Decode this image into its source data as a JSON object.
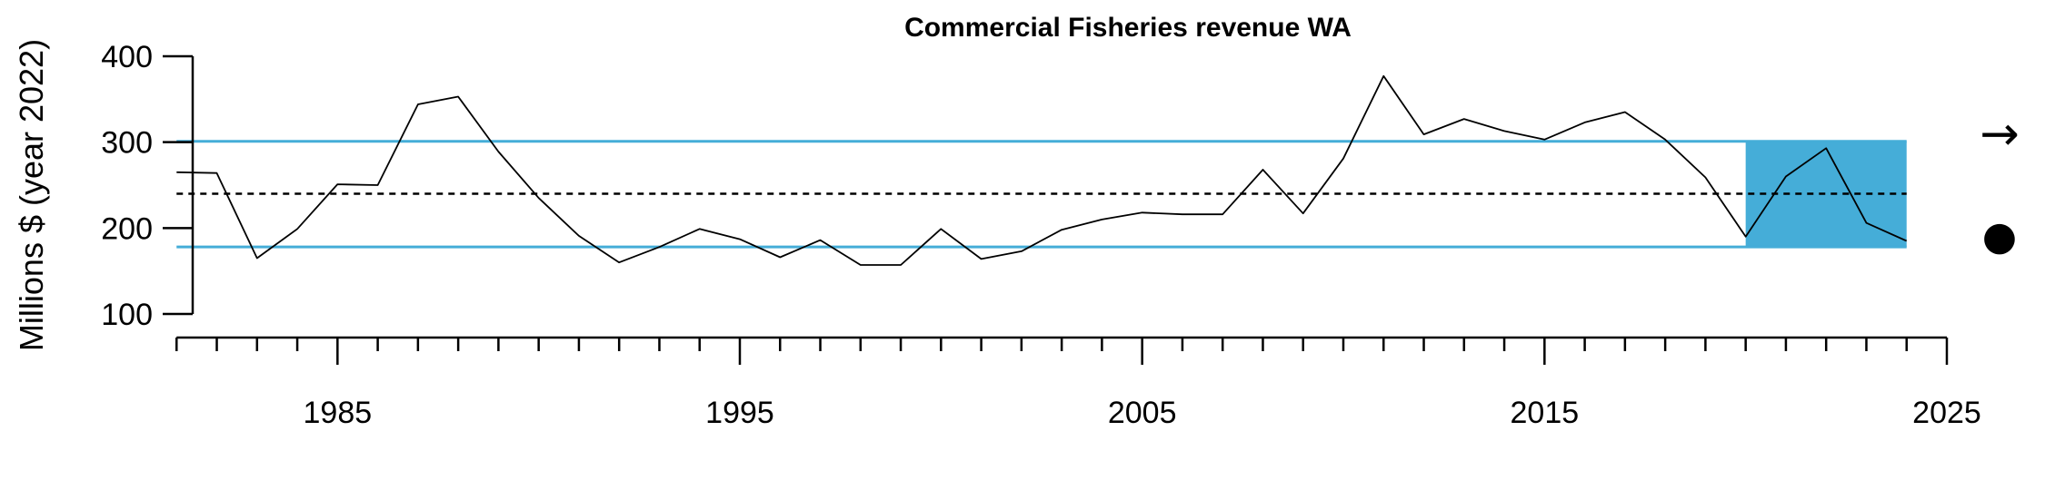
{
  "chart_data": {
    "type": "line",
    "title": "Commercial Fisheries revenue WA",
    "xlabel": "",
    "ylabel": "Millions $ (year 2022)",
    "xlim": [
      1980,
      2025
    ],
    "ylim": [
      100,
      400
    ],
    "x_ticks": [
      1985,
      1995,
      2005,
      2015,
      2025
    ],
    "y_ticks": [
      100,
      200,
      300,
      400
    ],
    "grid": false,
    "series": [
      {
        "x": [
          1981,
          1982,
          1983,
          1984,
          1985,
          1986,
          1987,
          1988,
          1989,
          1990,
          1991,
          1992,
          1993,
          1994,
          1995,
          1996,
          1997,
          1998,
          1999,
          2000,
          2001,
          2002,
          2003,
          2004,
          2005,
          2006,
          2007,
          2008,
          2009,
          2010,
          2011,
          2012,
          2013,
          2014,
          2015,
          2016,
          2017,
          2018,
          2019,
          2020,
          2021,
          2022,
          2023,
          2024
        ],
        "values": [
          265,
          264,
          165,
          199,
          251,
          250,
          344,
          353,
          289,
          235,
          191,
          160,
          178,
          199,
          187,
          166,
          186,
          157,
          157,
          199,
          164,
          173,
          198,
          210,
          218,
          216,
          216,
          268,
          217,
          281,
          377,
          309,
          327,
          313,
          303,
          323,
          335,
          303,
          259,
          190,
          260,
          293,
          206,
          185
        ]
      }
    ],
    "reference_lines": {
      "mean": 240,
      "upper_sd": 301,
      "lower_sd": 178,
      "mean_style": "dashed",
      "sd_color": "#45ADD8"
    },
    "recent_window": {
      "x_start": 2020,
      "x_end": 2024,
      "color": "#45ADD8"
    },
    "indicators": {
      "trend_symbol": "→",
      "mean_symbol": "●"
    }
  }
}
